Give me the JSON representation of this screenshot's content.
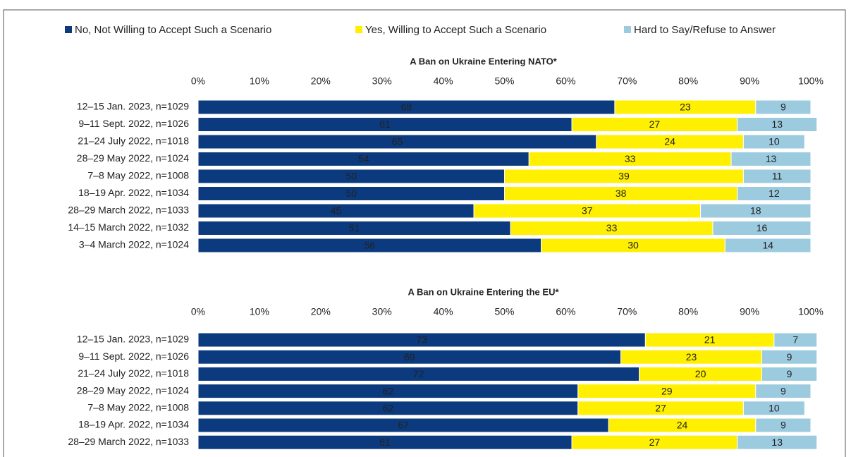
{
  "chart_data": [
    {
      "type": "bar",
      "orientation": "horizontal",
      "stacked": true,
      "title": "A Ban on Ukraine Entering NATO*",
      "categories": [
        "12–15 Jan. 2023, n=1029",
        "9–11 Sept. 2022, n=1026",
        "21–24 July 2022, n=1018",
        "28–29 May 2022, n=1024",
        "7–8 May 2022, n=1008",
        "18–19 Apr. 2022, n=1034",
        "28–29 March 2022, n=1033",
        "14–15 March 2022, n=1032",
        "3–4 March 2022, n=1024"
      ],
      "series": [
        {
          "name": "No, Not Willing to Accept Such a Scenario",
          "color": "#0b3a7e",
          "values": [
            68,
            61,
            65,
            54,
            50,
            50,
            45,
            51,
            56
          ]
        },
        {
          "name": "Yes, Willing to Accept Such a Scenario",
          "color": "#ffef00",
          "values": [
            23,
            27,
            24,
            33,
            39,
            38,
            37,
            33,
            30
          ]
        },
        {
          "name": "Hard to Say/Refuse to Answer",
          "color": "#9ccbe0",
          "values": [
            9,
            13,
            10,
            13,
            11,
            12,
            18,
            16,
            14
          ]
        }
      ],
      "xlim": [
        0,
        100
      ],
      "xticks": [
        {
          "value": 0,
          "label": "0%"
        },
        {
          "value": 10,
          "label": "10%"
        },
        {
          "value": 20,
          "label": "20%"
        },
        {
          "value": 30,
          "label": "30%"
        },
        {
          "value": 40,
          "label": "40%"
        },
        {
          "value": 50,
          "label": "50%"
        },
        {
          "value": 60,
          "label": "60%"
        },
        {
          "value": 70,
          "label": "70%"
        },
        {
          "value": 80,
          "label": "80%"
        },
        {
          "value": 90,
          "label": "90%"
        },
        {
          "value": 100,
          "label": "100%"
        }
      ]
    },
    {
      "type": "bar",
      "orientation": "horizontal",
      "stacked": true,
      "title": "A Ban on Ukraine Entering the EU*",
      "categories": [
        "12–15 Jan. 2023, n=1029",
        "9–11 Sept. 2022, n=1026",
        "21–24 July 2022, n=1018",
        "28–29 May 2022, n=1024",
        "7–8 May 2022, n=1008",
        "18–19 Apr. 2022, n=1034",
        "28–29 March 2022, n=1033"
      ],
      "series": [
        {
          "color": "#0b3a7e",
          "values": [
            73,
            69,
            72,
            62,
            62,
            67,
            61
          ]
        },
        {
          "color": "#ffef00",
          "values": [
            21,
            23,
            20,
            29,
            27,
            24,
            27
          ]
        },
        {
          "color": "#9ccbe0",
          "values": [
            7,
            9,
            9,
            9,
            10,
            9,
            13
          ]
        }
      ],
      "xlim": [
        0,
        100
      ],
      "xticks": [
        {
          "value": 0,
          "label": "0%"
        },
        {
          "value": 10,
          "label": "10%"
        },
        {
          "value": 20,
          "label": "20%"
        },
        {
          "value": 30,
          "label": "30%"
        },
        {
          "value": 40,
          "label": "40%"
        },
        {
          "value": 50,
          "label": "50%"
        },
        {
          "value": 60,
          "label": "60%"
        },
        {
          "value": 70,
          "label": "70%"
        },
        {
          "value": 80,
          "label": "80%"
        },
        {
          "value": 90,
          "label": "90%"
        },
        {
          "value": 100,
          "label": "100%"
        }
      ]
    }
  ]
}
